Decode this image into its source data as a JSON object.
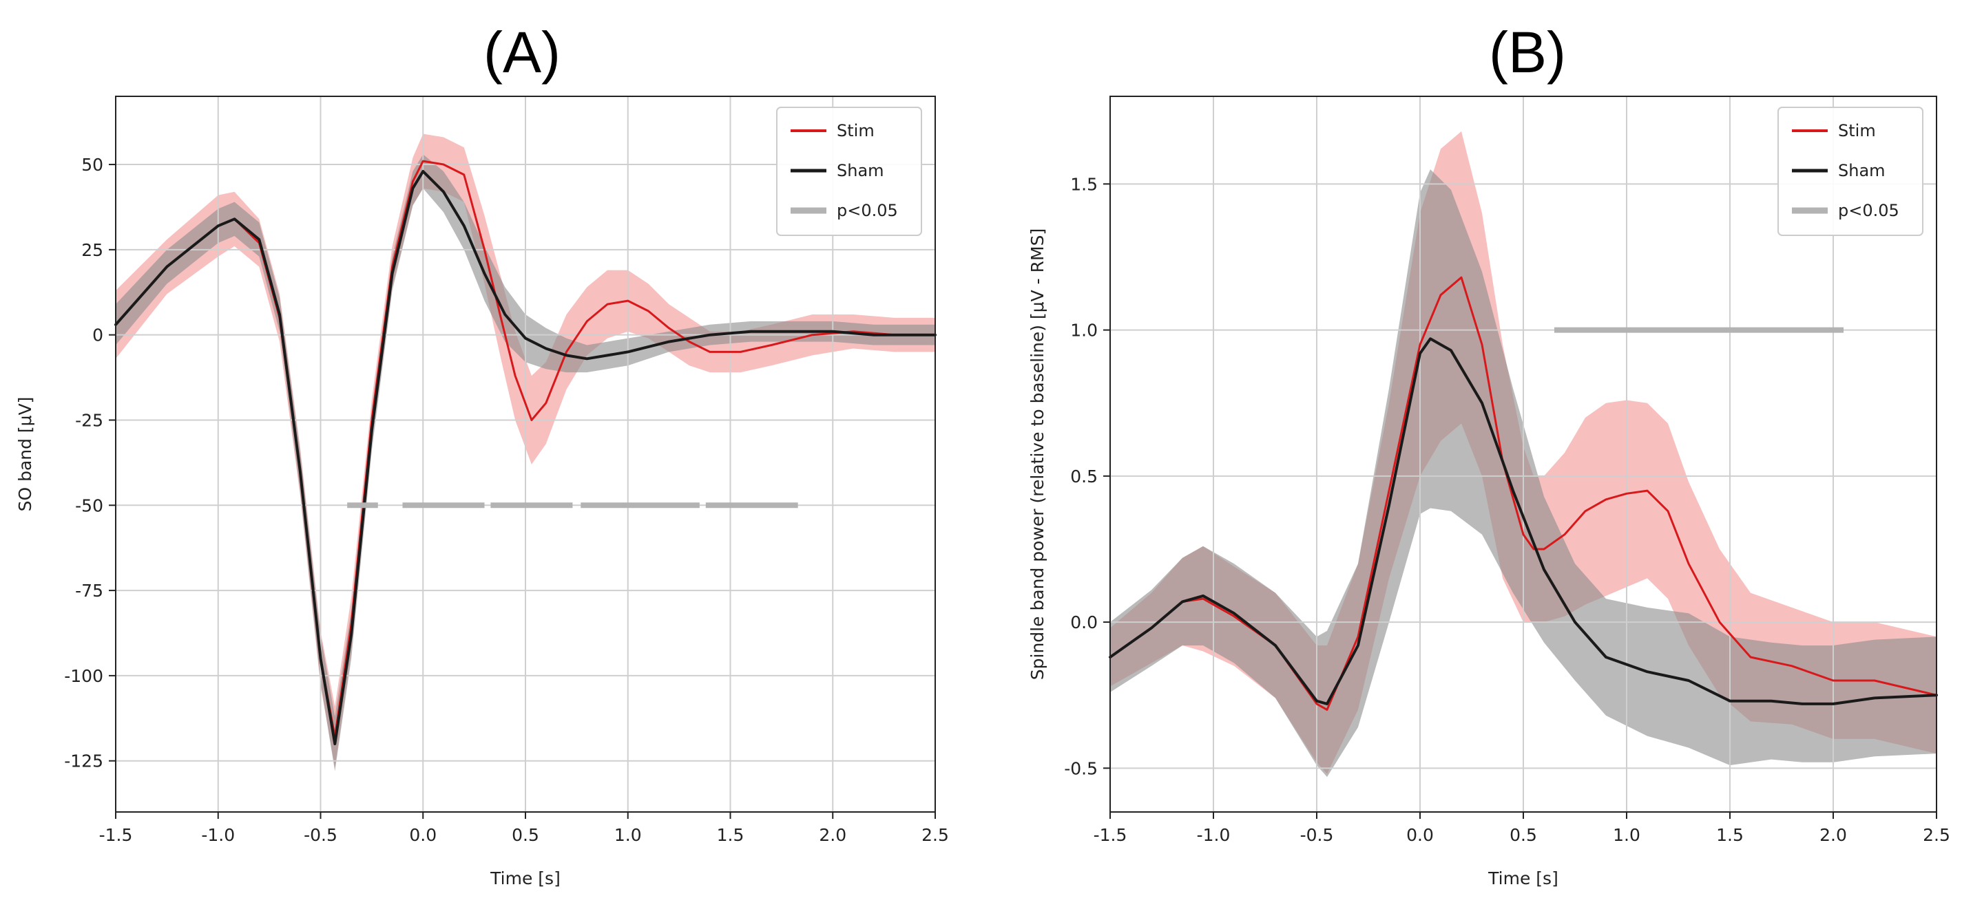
{
  "colors": {
    "stim": "#d7191c",
    "stim_band": "#f28b8b",
    "sham": "#1a1a1a",
    "sham_band": "#8c8c8c",
    "sig": "#b3b3b3",
    "grid": "#cfcfcf"
  },
  "chart_data": [
    {
      "type": "line",
      "panel": "(A)",
      "title": "(A)",
      "xlabel": "Time [s]",
      "ylabel": "SO band [μV]",
      "xlim": [
        -1.5,
        2.5
      ],
      "ylim": [
        -140,
        70
      ],
      "xticks": [
        -1.5,
        -1.0,
        -0.5,
        0.0,
        0.5,
        1.0,
        1.5,
        2.0,
        2.5
      ],
      "xtick_labels": [
        "-1.5",
        "-1.0",
        "-0.5",
        "0.0",
        "0.5",
        "1.0",
        "1.5",
        "2.0",
        "2.5"
      ],
      "yticks": [
        50,
        25,
        0,
        -25,
        -50,
        -75,
        -100,
        -125
      ],
      "ytick_labels": [
        "50",
        "25",
        "0",
        "-25",
        "-50",
        "-75",
        "-100",
        "-125"
      ],
      "grid": true,
      "legend": {
        "position": "top-right",
        "entries": [
          {
            "label": "Stim",
            "series": "stim"
          },
          {
            "label": "Sham",
            "series": "sham"
          },
          {
            "label": "p<0.05",
            "series": "sig"
          }
        ]
      },
      "series": [
        {
          "name": "Stim",
          "key": "stim",
          "x": [
            -1.5,
            -1.25,
            -1.0,
            -0.92,
            -0.8,
            -0.7,
            -0.6,
            -0.5,
            -0.43,
            -0.35,
            -0.25,
            -0.15,
            -0.05,
            0.0,
            0.1,
            0.2,
            0.3,
            0.38,
            0.45,
            0.53,
            0.6,
            0.7,
            0.8,
            0.9,
            1.0,
            1.1,
            1.2,
            1.3,
            1.4,
            1.55,
            1.7,
            1.9,
            2.1,
            2.3,
            2.5
          ],
          "values": [
            3,
            20,
            32,
            34,
            27,
            5,
            -40,
            -95,
            -118,
            -85,
            -25,
            20,
            45,
            51,
            50,
            47,
            25,
            5,
            -12,
            -25,
            -20,
            -5,
            4,
            9,
            10,
            7,
            2,
            -2,
            -5,
            -5,
            -3,
            0,
            1,
            0,
            0
          ],
          "band_half_width": [
            10,
            8,
            9,
            8,
            7,
            7,
            7,
            8,
            9,
            8,
            6,
            6,
            7,
            8,
            8,
            8,
            10,
            12,
            13,
            13,
            12,
            11,
            10,
            10,
            9,
            8,
            7,
            7,
            6,
            6,
            6,
            6,
            5,
            5,
            5
          ]
        },
        {
          "name": "Sham",
          "key": "sham",
          "x": [
            -1.5,
            -1.25,
            -1.0,
            -0.92,
            -0.8,
            -0.7,
            -0.6,
            -0.5,
            -0.43,
            -0.35,
            -0.25,
            -0.15,
            -0.05,
            0.0,
            0.1,
            0.2,
            0.3,
            0.4,
            0.5,
            0.6,
            0.7,
            0.8,
            0.9,
            1.0,
            1.2,
            1.4,
            1.6,
            1.8,
            2.0,
            2.2,
            2.5
          ],
          "values": [
            3,
            20,
            32,
            34,
            28,
            6,
            -40,
            -95,
            -120,
            -88,
            -28,
            18,
            43,
            48,
            42,
            32,
            18,
            6,
            -1,
            -4,
            -6,
            -7,
            -6,
            -5,
            -2,
            0,
            1,
            1,
            1,
            0,
            0
          ],
          "band_half_width": [
            6,
            5,
            5,
            5,
            5,
            5,
            6,
            7,
            8,
            7,
            6,
            5,
            5,
            5,
            6,
            7,
            8,
            8,
            7,
            6,
            5,
            4,
            4,
            4,
            3,
            3,
            3,
            3,
            3,
            3,
            3
          ]
        }
      ],
      "significance": {
        "label": "p<0.05",
        "y": -50,
        "segments": [
          [
            -0.37,
            -0.22
          ],
          [
            -0.1,
            0.3
          ],
          [
            0.33,
            0.73
          ],
          [
            0.77,
            1.35
          ],
          [
            1.38,
            1.83
          ]
        ]
      }
    },
    {
      "type": "line",
      "panel": "(B)",
      "title": "(B)",
      "xlabel": "Time [s]",
      "ylabel": "Spindle band power (relative to baseline) [μV - RMS]",
      "xlim": [
        -1.5,
        2.5
      ],
      "ylim": [
        -0.65,
        1.8
      ],
      "xticks": [
        -1.5,
        -1.0,
        -0.5,
        0.0,
        0.5,
        1.0,
        1.5,
        2.0,
        2.5
      ],
      "xtick_labels": [
        "-1.5",
        "-1.0",
        "-0.5",
        "0.0",
        "0.5",
        "1.0",
        "1.5",
        "2.0",
        "2.5"
      ],
      "yticks": [
        1.5,
        1.0,
        0.5,
        0.0,
        -0.5
      ],
      "ytick_labels": [
        "1.5",
        "1.0",
        "0.5",
        "0.0",
        "-0.5"
      ],
      "grid": true,
      "legend": {
        "position": "top-right",
        "entries": [
          {
            "label": "Stim",
            "series": "stim"
          },
          {
            "label": "Sham",
            "series": "sham"
          },
          {
            "label": "p<0.05",
            "series": "sig"
          }
        ]
      },
      "series": [
        {
          "name": "Stim",
          "key": "stim",
          "x": [
            -1.5,
            -1.3,
            -1.15,
            -1.05,
            -0.9,
            -0.7,
            -0.5,
            -0.45,
            -0.3,
            -0.15,
            0.0,
            0.1,
            0.2,
            0.3,
            0.4,
            0.5,
            0.55,
            0.6,
            0.7,
            0.8,
            0.9,
            1.0,
            1.1,
            1.2,
            1.3,
            1.45,
            1.6,
            1.8,
            2.0,
            2.2,
            2.5
          ],
          "values": [
            -0.12,
            -0.02,
            0.07,
            0.08,
            0.02,
            -0.08,
            -0.28,
            -0.3,
            -0.05,
            0.45,
            0.95,
            1.12,
            1.18,
            0.95,
            0.55,
            0.3,
            0.25,
            0.25,
            0.3,
            0.38,
            0.42,
            0.44,
            0.45,
            0.38,
            0.2,
            0.0,
            -0.12,
            -0.15,
            -0.2,
            -0.2,
            -0.25
          ],
          "band_half_width": [
            0.1,
            0.12,
            0.15,
            0.18,
            0.17,
            0.18,
            0.2,
            0.22,
            0.25,
            0.3,
            0.45,
            0.5,
            0.5,
            0.45,
            0.4,
            0.3,
            0.25,
            0.25,
            0.28,
            0.32,
            0.33,
            0.32,
            0.3,
            0.3,
            0.28,
            0.25,
            0.22,
            0.2,
            0.2,
            0.2,
            0.2
          ]
        },
        {
          "name": "Sham",
          "key": "sham",
          "x": [
            -1.5,
            -1.3,
            -1.15,
            -1.05,
            -0.9,
            -0.7,
            -0.5,
            -0.45,
            -0.3,
            -0.15,
            0.0,
            0.05,
            0.15,
            0.3,
            0.45,
            0.6,
            0.75,
            0.9,
            1.1,
            1.3,
            1.5,
            1.7,
            1.85,
            2.0,
            2.2,
            2.5
          ],
          "values": [
            -0.12,
            -0.02,
            0.07,
            0.09,
            0.03,
            -0.08,
            -0.27,
            -0.28,
            -0.08,
            0.4,
            0.92,
            0.97,
            0.93,
            0.75,
            0.45,
            0.18,
            0.0,
            -0.12,
            -0.17,
            -0.2,
            -0.27,
            -0.27,
            -0.28,
            -0.28,
            -0.26,
            -0.25
          ],
          "band_half_width": [
            0.12,
            0.13,
            0.15,
            0.17,
            0.17,
            0.18,
            0.22,
            0.25,
            0.28,
            0.4,
            0.55,
            0.58,
            0.55,
            0.45,
            0.35,
            0.25,
            0.2,
            0.2,
            0.22,
            0.23,
            0.22,
            0.2,
            0.2,
            0.2,
            0.2,
            0.2
          ]
        }
      ],
      "significance": {
        "label": "p<0.05",
        "y": 1.0,
        "segments": [
          [
            0.65,
            2.05
          ]
        ]
      }
    }
  ]
}
